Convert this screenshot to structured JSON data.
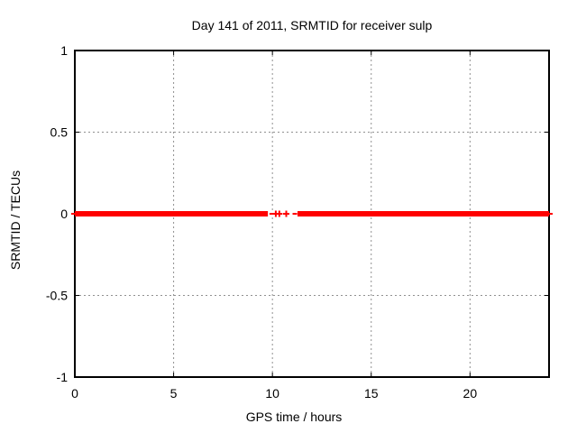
{
  "chart_data": {
    "type": "scatter",
    "title": "Day 141 of 2011, SRMTID for receiver sulp",
    "xlabel": "GPS time / hours",
    "ylabel": "SRMTID / TECUs",
    "xlim": [
      0,
      24
    ],
    "ylim": [
      -1,
      1
    ],
    "xticks": [
      0,
      5,
      10,
      15,
      20
    ],
    "yticks": [
      1,
      0.5,
      0,
      -0.5,
      -1
    ],
    "grid": true,
    "legend": "none",
    "marker": "plus",
    "colors": {
      "series": "#ff0000",
      "grid": "#909090",
      "axis": "#000000",
      "text": "#000000"
    },
    "series": [
      {
        "name": "SRMTID",
        "y_value": 0,
        "dense_runs_hours": [
          [
            0,
            9.77
          ],
          [
            11.27,
            24
          ]
        ],
        "short_dashes_hours": [
          [
            9.85,
            10.05
          ],
          [
            11.02,
            11.25
          ]
        ],
        "isolated_points_hours": [
          10.17,
          10.35,
          10.7
        ]
      }
    ]
  }
}
